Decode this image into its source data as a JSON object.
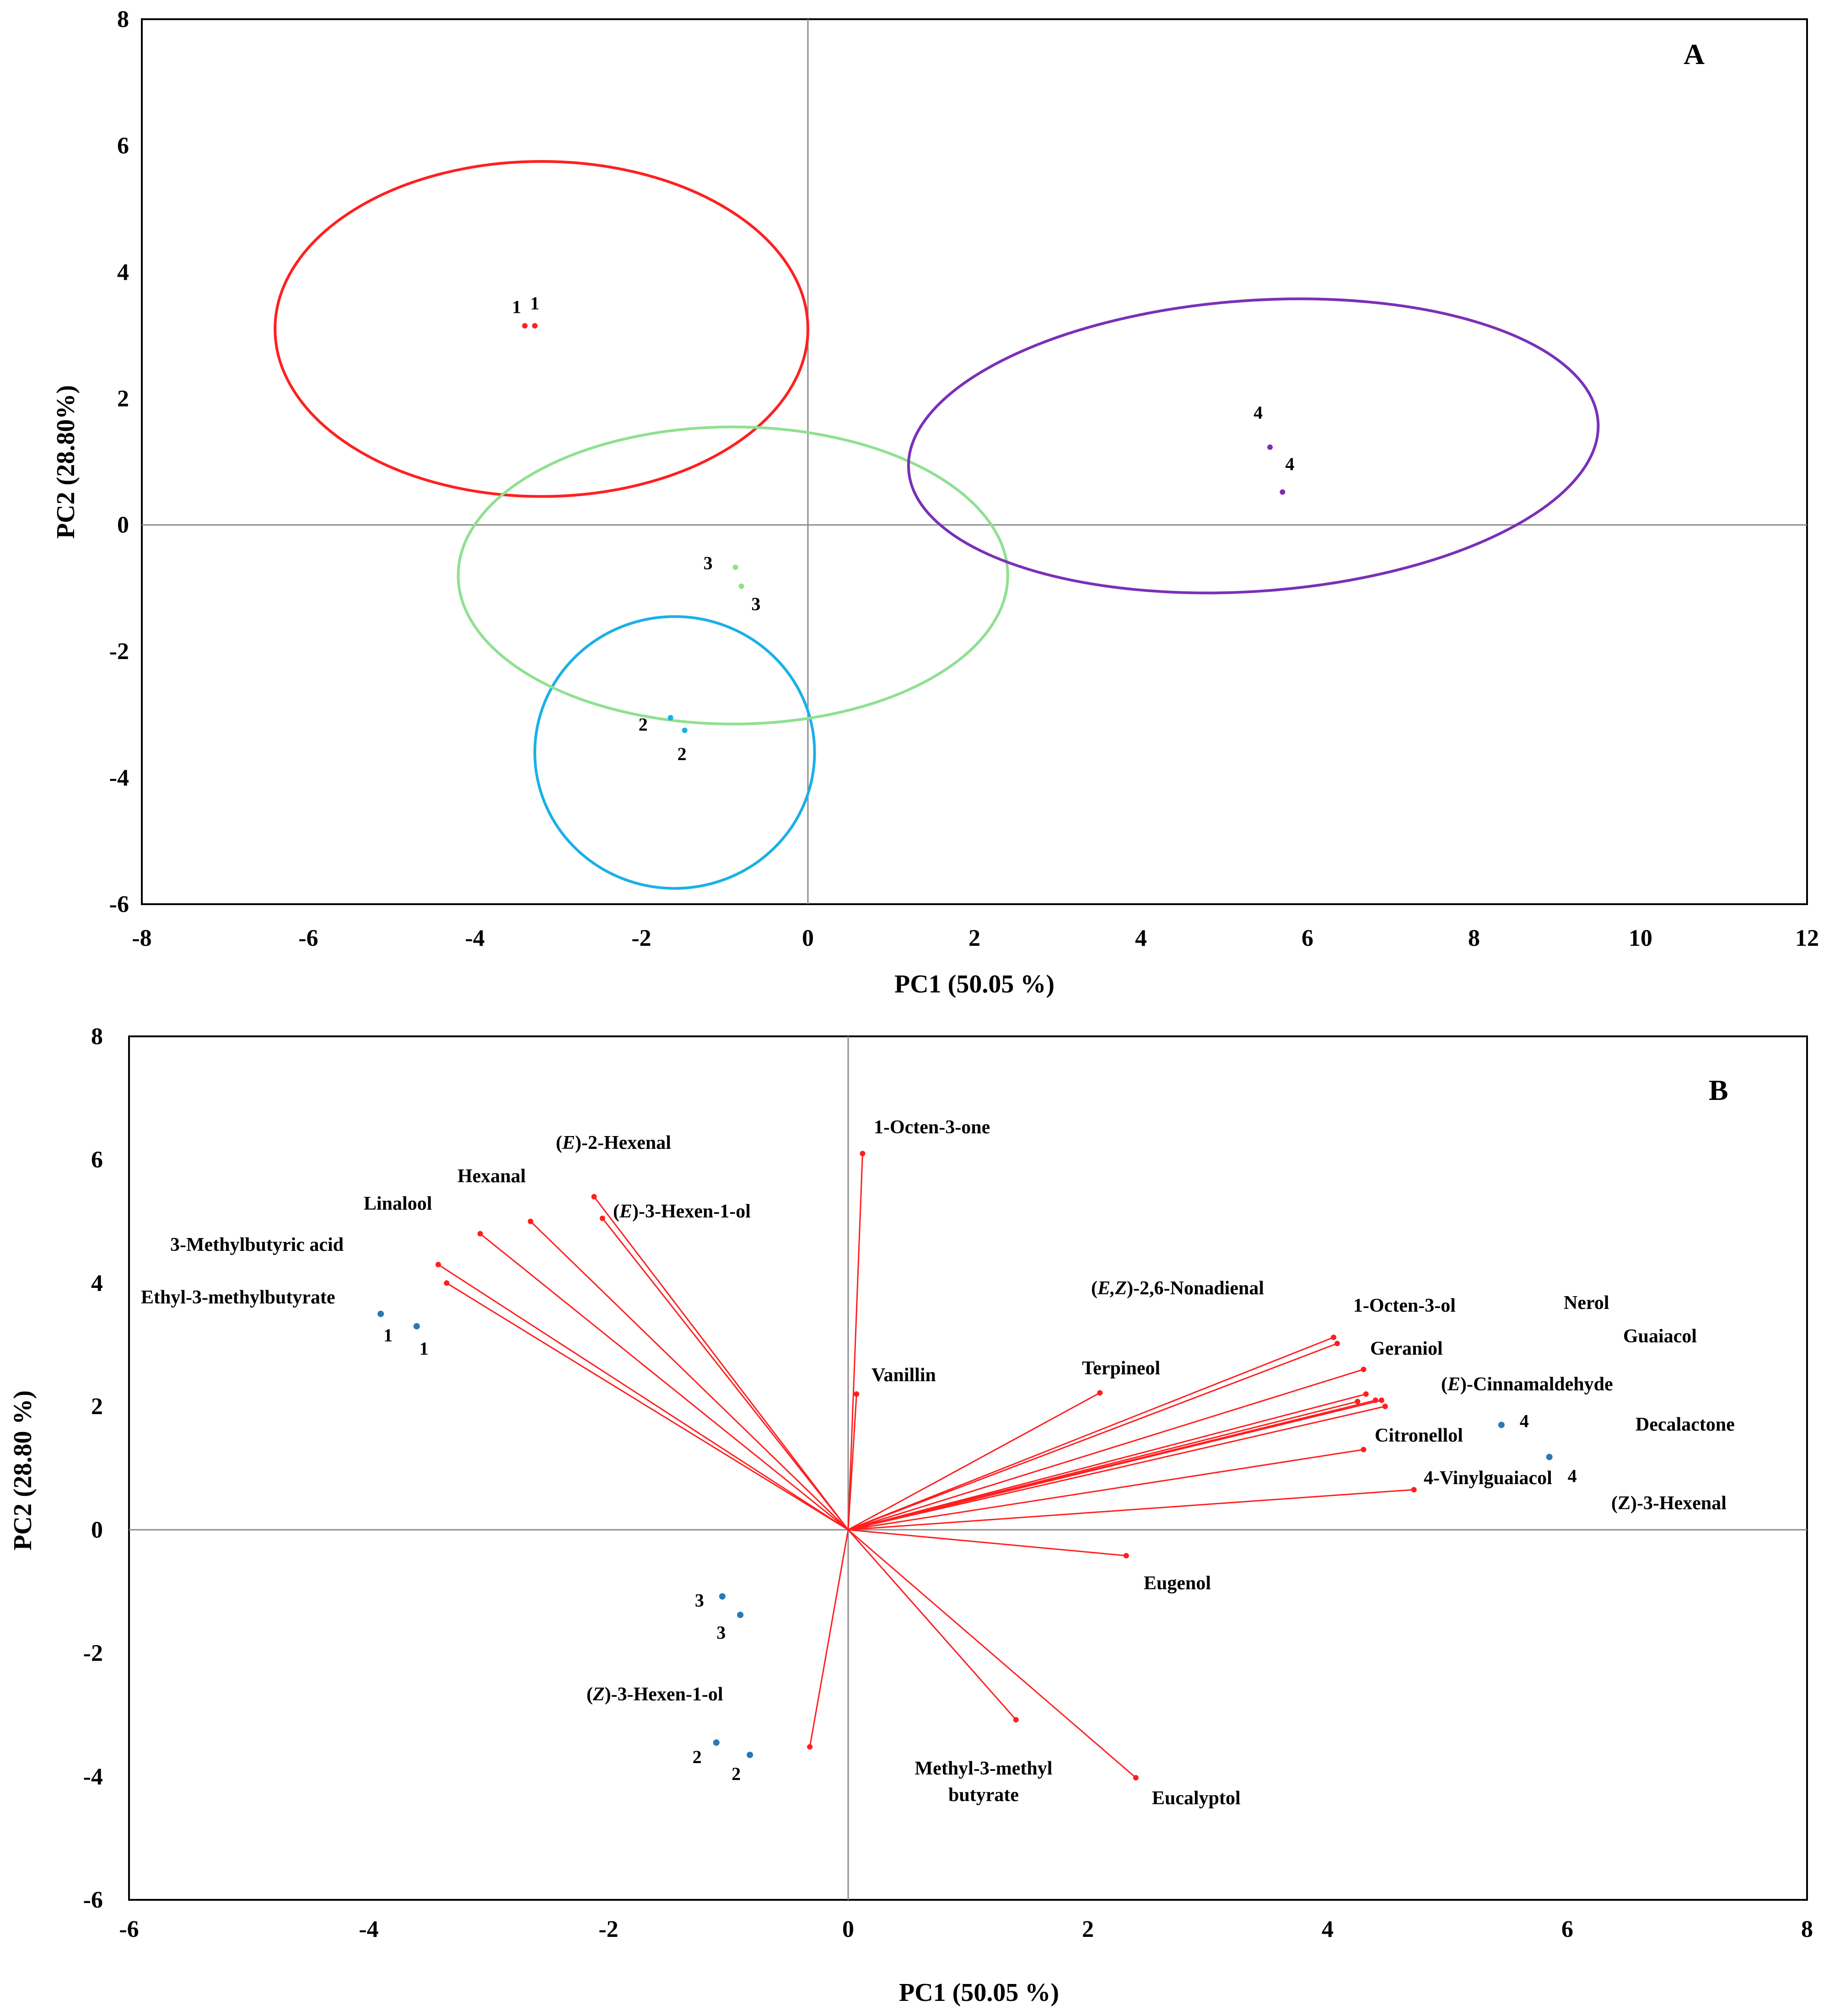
{
  "chart_data": [
    {
      "type": "scatter",
      "panel": "A",
      "xlabel": "PC1 (50.05 %)",
      "ylabel": "PC2 (28.80%)",
      "xlim": [
        -8,
        12
      ],
      "ylim": [
        -6,
        8
      ],
      "xticks": [
        -8,
        -6,
        -4,
        -2,
        0,
        2,
        4,
        6,
        8,
        10,
        12
      ],
      "yticks": [
        -6,
        -4,
        -2,
        0,
        2,
        4,
        6,
        8
      ],
      "groups": [
        {
          "name": "1",
          "color": "#ff2020",
          "ellipse": {
            "cx": -3.2,
            "cy": 3.1,
            "rx": 3.2,
            "ry": 2.65,
            "angle": 0
          },
          "points": [
            {
              "x": -3.4,
              "y": 3.15,
              "label": "1"
            },
            {
              "x": -3.28,
              "y": 3.15,
              "label": "1"
            }
          ]
        },
        {
          "name": "2",
          "color": "#1ab0e8",
          "ellipse": {
            "cx": -1.6,
            "cy": -3.6,
            "rx": 1.68,
            "ry": 2.15,
            "angle": 0
          },
          "points": [
            {
              "x": -1.65,
              "y": -3.05,
              "label": "2"
            },
            {
              "x": -1.48,
              "y": -3.25,
              "label": "2"
            }
          ]
        },
        {
          "name": "3",
          "color": "#90e090",
          "ellipse": {
            "cx": -0.9,
            "cy": -0.8,
            "rx": 3.3,
            "ry": 2.35,
            "angle": 0
          },
          "points": [
            {
              "x": -0.87,
              "y": -0.67,
              "label": "3"
            },
            {
              "x": -0.8,
              "y": -0.97,
              "label": "3"
            }
          ]
        },
        {
          "name": "4",
          "color": "#7a30b8",
          "ellipse": {
            "cx": 5.35,
            "cy": 1.25,
            "rx": 4.15,
            "ry": 2.3,
            "angle": -4
          },
          "points": [
            {
              "x": 5.55,
              "y": 1.23,
              "label": "4"
            },
            {
              "x": 5.7,
              "y": 0.52,
              "label": "4"
            }
          ]
        }
      ],
      "annotation": "A"
    },
    {
      "type": "scatter",
      "panel": "B",
      "xlabel": "PC1 (50.05 %)",
      "ylabel": "PC2 (28.80 %)",
      "xlim": [
        -6,
        8
      ],
      "ylim": [
        -6,
        8
      ],
      "xticks": [
        -6,
        -4,
        -2,
        0,
        2,
        4,
        6,
        8
      ],
      "yticks": [
        -6,
        -4,
        -2,
        0,
        2,
        4,
        6,
        8
      ],
      "annotation": "B",
      "scores": [
        {
          "x": -3.9,
          "y": 3.5,
          "label": "1"
        },
        {
          "x": -3.6,
          "y": 3.3,
          "label": "1"
        },
        {
          "x": -1.05,
          "y": -1.08,
          "label": "3"
        },
        {
          "x": -0.9,
          "y": -1.38,
          "label": "3"
        },
        {
          "x": -1.1,
          "y": -3.45,
          "label": "2"
        },
        {
          "x": -0.82,
          "y": -3.65,
          "label": "2"
        },
        {
          "x": 5.45,
          "y": 1.7,
          "label": "4"
        },
        {
          "x": 5.85,
          "y": 1.18,
          "label": "4"
        }
      ],
      "loadings": [
        {
          "name": "1-Octen-3-one",
          "x": 0.12,
          "y": 6.1
        },
        {
          "name": "Vanillin",
          "x": 0.07,
          "y": 2.2
        },
        {
          "name": "(E)-2-Hexenal",
          "x": -2.12,
          "y": 5.4
        },
        {
          "name": "(E)-3-Hexen-1-ol",
          "x": -2.05,
          "y": 5.05
        },
        {
          "name": "Hexanal",
          "x": -2.65,
          "y": 5.0
        },
        {
          "name": "Linalool",
          "x": -3.07,
          "y": 4.8
        },
        {
          "name": "3-Methylbutyric acid",
          "x": -3.42,
          "y": 4.3
        },
        {
          "name": "Ethyl-3-methylbutyrate",
          "x": -3.35,
          "y": 4.0
        },
        {
          "name": "Terpineol",
          "x": 2.1,
          "y": 2.22
        },
        {
          "name": "(E,Z)-2,6-Nonadienal",
          "x": 4.05,
          "y": 3.12
        },
        {
          "name": "1-Octen-3-ol",
          "x": 4.08,
          "y": 3.02
        },
        {
          "name": "Geraniol",
          "x": 4.3,
          "y": 2.6
        },
        {
          "name": "Nerol",
          "x": 4.32,
          "y": 2.2
        },
        {
          "name": "Guaiacol",
          "x": 4.4,
          "y": 2.1
        },
        {
          "name": "(E)-Cinnamaldehyde",
          "x": 4.25,
          "y": 2.08
        },
        {
          "name": "Decalactone",
          "x": 4.45,
          "y": 2.1
        },
        {
          "name": "Citronellol",
          "x": 4.48,
          "y": 2.0
        },
        {
          "name": "4-Vinylguaiacol",
          "x": 4.3,
          "y": 1.3
        },
        {
          "name": "(Z)-3-Hexenal",
          "x": 4.72,
          "y": 0.65
        },
        {
          "name": "Eugenol",
          "x": 2.32,
          "y": -0.42
        },
        {
          "name": "Methyl-3-methyl butyrate",
          "x": 1.4,
          "y": -3.08
        },
        {
          "name": "Eucalyptol",
          "x": 2.4,
          "y": -4.02
        },
        {
          "name": "(Z)-3-Hexen-1-ol",
          "x": -0.32,
          "y": -3.52
        }
      ]
    }
  ],
  "labels": {
    "panelA": {
      "letter": "A",
      "xlabel": "PC1 (50.05 %)",
      "ylabel": "PC2 (28.80%)"
    },
    "panelB": {
      "letter": "B",
      "xlabel": "PC1 (50.05 %)",
      "ylabel": "PC2 (28.80 %)",
      "var_labels": {
        "octenone": "1-Octen-3-one",
        "e2hexenal_italic": "E",
        "e2hexenal_rest": ")-2-Hexenal",
        "e3hexenol_italic": "E",
        "e3hexenol_rest": ")-3-Hexen-1-ol",
        "hexanal": "Hexanal",
        "linalool": "Linalool",
        "methylbutyric": "3-Methylbutyric acid",
        "ethylmethylbutyrate": "Ethyl-3-methylbutyrate",
        "vanillin": "Vanillin",
        "nonadienal_italic": "E,Z",
        "nonadienal_rest": ")-2,6-Nonadienal",
        "octenol": "1-Octen-3-ol",
        "nerol": "Nerol",
        "guaiacol": "Guaiacol",
        "geraniol": "Geraniol",
        "terpineol": "Terpineol",
        "cinnamaldehyde_italic": "E",
        "cinnamaldehyde_rest": ")-Cinnamaldehyde",
        "citronellol": "Citronellol",
        "decalactone": "Decalactone",
        "vinylguaiacol": "4-Vinylguaiacol",
        "z3hexenal": "(Z)-3-Hexenal",
        "eugenol": "Eugenol",
        "z3hexenol_italic": "Z",
        "z3hexenol_rest": ")-3-Hexen-1-ol",
        "methylbutyrate_line1": "Methyl-3-methyl",
        "methylbutyrate_line2": "butyrate",
        "eucalyptol": "Eucalyptol"
      }
    }
  }
}
